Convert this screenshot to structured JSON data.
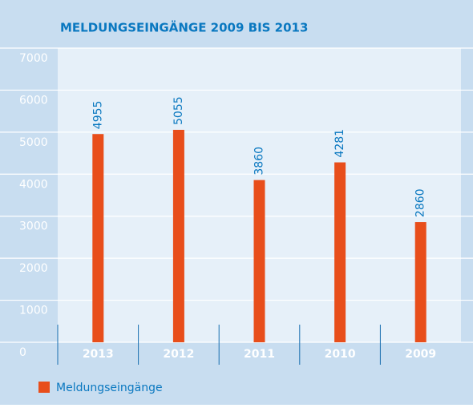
{
  "chart_data": {
    "type": "bar",
    "title": "MELDUNGSEINGÄNGE 2009 BIS 2013",
    "categories": [
      "2013",
      "2012",
      "2011",
      "2010",
      "2009"
    ],
    "series": [
      {
        "name": "Meldungseingänge",
        "color": "#e84e1b",
        "values": [
          4955,
          5055,
          3860,
          4281,
          2860
        ]
      }
    ],
    "ylim": [
      0,
      7000
    ],
    "yticks": [
      0,
      1000,
      2000,
      3000,
      4000,
      5000,
      6000,
      7000
    ],
    "grid": true,
    "legend": "bottom"
  }
}
